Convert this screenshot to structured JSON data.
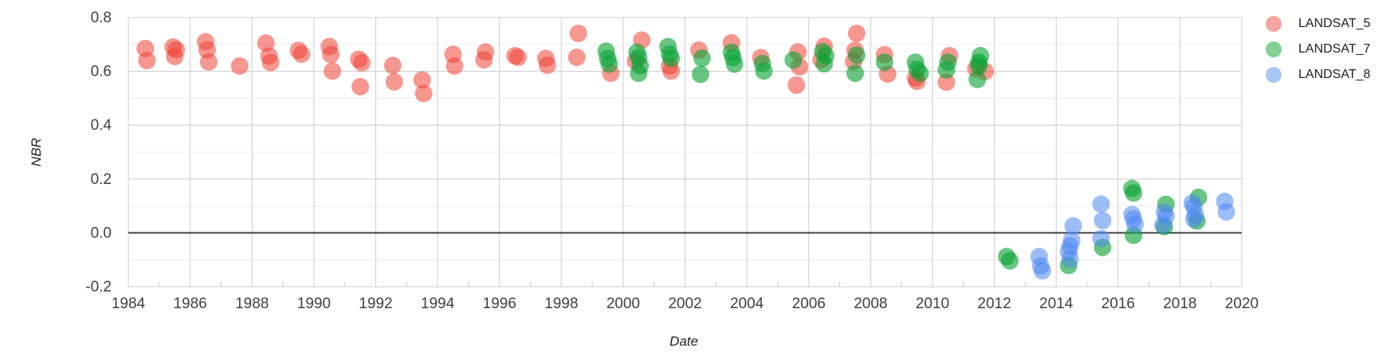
{
  "chart_data": {
    "type": "scatter",
    "title": "",
    "xlabel": "Date",
    "ylabel": "NBR",
    "xlim": [
      1984,
      2020
    ],
    "ylim": [
      -0.2,
      0.8
    ],
    "grid": true,
    "legend_position": "right",
    "x_ticks": [
      {
        "value": 1984,
        "label": "1984"
      },
      {
        "value": 1986,
        "label": "1986"
      },
      {
        "value": 1988,
        "label": "1988"
      },
      {
        "value": 1990,
        "label": "1990"
      },
      {
        "value": 1992,
        "label": "1992"
      },
      {
        "value": 1994,
        "label": "1994"
      },
      {
        "value": 1996,
        "label": "1996"
      },
      {
        "value": 1998,
        "label": "1998"
      },
      {
        "value": 2000,
        "label": "2000"
      },
      {
        "value": 2002,
        "label": "2002"
      },
      {
        "value": 2004,
        "label": "2004"
      },
      {
        "value": 2006,
        "label": "2006"
      },
      {
        "value": 2008,
        "label": "2008"
      },
      {
        "value": 2010,
        "label": "2010"
      },
      {
        "value": 2012,
        "label": "2012"
      },
      {
        "value": 2014,
        "label": "2014"
      },
      {
        "value": 2016,
        "label": "2016"
      },
      {
        "value": 2018,
        "label": "2018"
      },
      {
        "value": 2020,
        "label": "2020"
      }
    ],
    "x_minor_ticks": [
      1985,
      1987,
      1989,
      1991,
      1993,
      1995,
      1997,
      1999,
      2001,
      2003,
      2005,
      2007,
      2009,
      2011,
      2013,
      2015,
      2017,
      2019
    ],
    "y_ticks": [
      {
        "value": 0.8,
        "label": "0.8"
      },
      {
        "value": 0.6,
        "label": "0.6"
      },
      {
        "value": 0.4,
        "label": "0.4"
      },
      {
        "value": 0.2,
        "label": "0.2"
      },
      {
        "value": 0.0,
        "label": "0.0"
      },
      {
        "value": -0.2,
        "label": "-0.2"
      }
    ],
    "y_minor_gridlines": [
      0.7,
      0.5,
      0.3,
      0.1,
      -0.1
    ],
    "zero_baseline": 0.0,
    "style": {
      "grid_major_color": "#cccccc",
      "grid_minor_color": "#ececec",
      "zero_line_color": "#424242",
      "tick_label_color": "#404040",
      "point_radius": 11
    },
    "series": [
      {
        "name": "LANDSAT_5",
        "color": "#ef4135",
        "opacity": 0.55,
        "legend_color": "#f3a6a0",
        "points": [
          [
            1984.55,
            0.685
          ],
          [
            1984.6,
            0.64
          ],
          [
            1985.45,
            0.69
          ],
          [
            1985.55,
            0.68
          ],
          [
            1985.5,
            0.655
          ],
          [
            1986.5,
            0.71
          ],
          [
            1986.55,
            0.68
          ],
          [
            1986.6,
            0.635
          ],
          [
            1987.6,
            0.62
          ],
          [
            1988.45,
            0.705
          ],
          [
            1988.55,
            0.657
          ],
          [
            1988.6,
            0.633
          ],
          [
            1989.5,
            0.678
          ],
          [
            1989.6,
            0.664
          ],
          [
            1990.5,
            0.692
          ],
          [
            1990.55,
            0.663
          ],
          [
            1990.6,
            0.601
          ],
          [
            1991.45,
            0.645
          ],
          [
            1991.55,
            0.632
          ],
          [
            1991.5,
            0.543
          ],
          [
            1992.55,
            0.622
          ],
          [
            1992.6,
            0.561
          ],
          [
            1993.5,
            0.568
          ],
          [
            1993.55,
            0.518
          ],
          [
            1994.5,
            0.663
          ],
          [
            1994.55,
            0.62
          ],
          [
            1995.55,
            0.672
          ],
          [
            1995.5,
            0.643
          ],
          [
            1996.5,
            0.658
          ],
          [
            1996.6,
            0.652
          ],
          [
            1997.5,
            0.648
          ],
          [
            1997.55,
            0.623
          ],
          [
            1998.55,
            0.741
          ],
          [
            1998.5,
            0.652
          ],
          [
            1999.6,
            0.593
          ],
          [
            2000.4,
            0.638
          ],
          [
            2000.6,
            0.716
          ],
          [
            2001.5,
            0.62
          ],
          [
            2001.55,
            0.601
          ],
          [
            2002.45,
            0.679
          ],
          [
            2003.5,
            0.706
          ],
          [
            2004.45,
            0.651
          ],
          [
            2005.65,
            0.672
          ],
          [
            2005.7,
            0.617
          ],
          [
            2005.6,
            0.549
          ],
          [
            2006.5,
            0.693
          ],
          [
            2006.4,
            0.643
          ],
          [
            2007.55,
            0.741
          ],
          [
            2007.5,
            0.678
          ],
          [
            2007.45,
            0.637
          ],
          [
            2008.45,
            0.662
          ],
          [
            2008.55,
            0.59
          ],
          [
            2009.45,
            0.575
          ],
          [
            2009.5,
            0.563
          ],
          [
            2010.55,
            0.658
          ],
          [
            2010.45,
            0.56
          ],
          [
            2011.4,
            0.61
          ],
          [
            2011.7,
            0.6
          ]
        ]
      },
      {
        "name": "LANDSAT_7",
        "color": "#0ba336",
        "opacity": 0.62,
        "legend_color": "#83d294",
        "points": [
          [
            1999.45,
            0.675
          ],
          [
            1999.5,
            0.648
          ],
          [
            1999.55,
            0.627
          ],
          [
            2000.45,
            0.671
          ],
          [
            2000.5,
            0.652
          ],
          [
            2000.55,
            0.621
          ],
          [
            2000.5,
            0.593
          ],
          [
            2001.45,
            0.692
          ],
          [
            2001.5,
            0.664
          ],
          [
            2001.55,
            0.648
          ],
          [
            2002.55,
            0.649
          ],
          [
            2002.5,
            0.589
          ],
          [
            2003.5,
            0.671
          ],
          [
            2003.55,
            0.651
          ],
          [
            2003.6,
            0.627
          ],
          [
            2004.5,
            0.629
          ],
          [
            2004.55,
            0.601
          ],
          [
            2005.5,
            0.642
          ],
          [
            2006.45,
            0.673
          ],
          [
            2006.55,
            0.658
          ],
          [
            2006.5,
            0.628
          ],
          [
            2007.55,
            0.66
          ],
          [
            2007.5,
            0.593
          ],
          [
            2008.45,
            0.634
          ],
          [
            2009.45,
            0.634
          ],
          [
            2009.5,
            0.608
          ],
          [
            2009.6,
            0.593
          ],
          [
            2010.5,
            0.634
          ],
          [
            2010.45,
            0.605
          ],
          [
            2011.55,
            0.658
          ],
          [
            2011.5,
            0.634
          ],
          [
            2011.5,
            0.62
          ],
          [
            2011.45,
            0.57
          ],
          [
            2012.4,
            -0.088
          ],
          [
            2012.5,
            -0.104
          ],
          [
            2014.4,
            -0.121
          ],
          [
            2015.5,
            -0.054
          ],
          [
            2016.45,
            0.165
          ],
          [
            2016.5,
            0.148
          ],
          [
            2016.5,
            -0.009
          ],
          [
            2017.55,
            0.106
          ],
          [
            2017.5,
            0.023
          ],
          [
            2018.6,
            0.132
          ],
          [
            2018.55,
            0.044
          ]
        ]
      },
      {
        "name": "LANDSAT_8",
        "color": "#4d86f0",
        "opacity": 0.55,
        "legend_color": "#a9c7f5",
        "points": [
          [
            2013.45,
            -0.088
          ],
          [
            2013.5,
            -0.123
          ],
          [
            2013.55,
            -0.141
          ],
          [
            2014.55,
            0.026
          ],
          [
            2014.5,
            -0.027
          ],
          [
            2014.45,
            -0.049
          ],
          [
            2014.4,
            -0.069
          ],
          [
            2014.45,
            -0.097
          ],
          [
            2015.45,
            0.107
          ],
          [
            2015.5,
            0.046
          ],
          [
            2015.45,
            -0.021
          ],
          [
            2016.45,
            0.068
          ],
          [
            2016.5,
            0.051
          ],
          [
            2016.55,
            0.031
          ],
          [
            2017.5,
            0.078
          ],
          [
            2017.55,
            0.061
          ],
          [
            2017.45,
            0.029
          ],
          [
            2018.4,
            0.111
          ],
          [
            2018.45,
            0.096
          ],
          [
            2018.5,
            0.067
          ],
          [
            2018.45,
            0.051
          ],
          [
            2019.45,
            0.117
          ],
          [
            2019.5,
            0.078
          ]
        ]
      }
    ]
  }
}
